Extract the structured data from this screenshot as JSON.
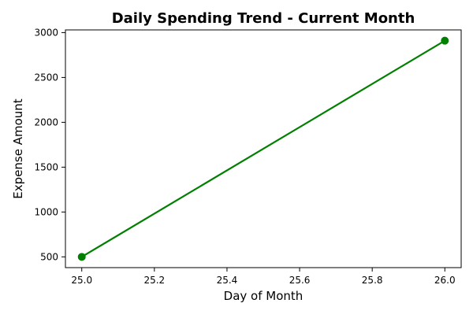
{
  "chart_data": {
    "type": "line",
    "title": "Daily Spending Trend - Current Month",
    "xlabel": "Day of Month",
    "ylabel": "Expense Amount",
    "xlim": [
      24.955,
      26.045
    ],
    "ylim": [
      380,
      3030
    ],
    "x_ticks": [
      25.0,
      25.2,
      25.4,
      25.6,
      25.8,
      26.0
    ],
    "x_tick_labels": [
      "25.0",
      "25.2",
      "25.4",
      "25.6",
      "25.8",
      "26.0"
    ],
    "y_ticks": [
      500,
      1000,
      1500,
      2000,
      2500,
      3000
    ],
    "y_tick_labels": [
      "500",
      "1000",
      "1500",
      "2000",
      "2500",
      "3000"
    ],
    "grid": false,
    "legend": false,
    "series": [
      {
        "color": "#008000",
        "marker": "circle",
        "x": [
          25,
          26
        ],
        "y": [
          500,
          2910
        ]
      }
    ]
  }
}
